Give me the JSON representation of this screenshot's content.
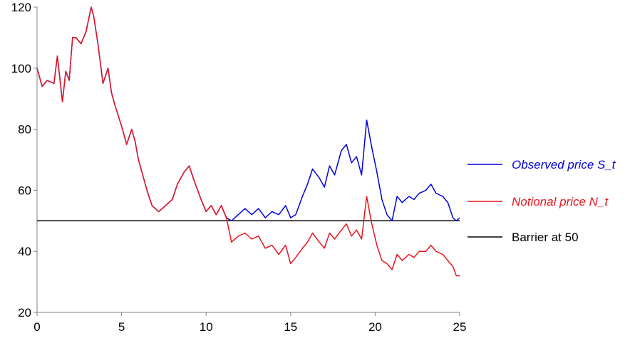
{
  "chart_data": {
    "type": "line",
    "xlim": [
      0,
      25
    ],
    "ylim": [
      20,
      120
    ],
    "x_ticks": [
      0,
      5,
      10,
      15,
      20,
      25
    ],
    "y_ticks": [
      20,
      40,
      60,
      80,
      100,
      120
    ],
    "grid": false,
    "legend_placement": "right",
    "barrier": {
      "name": "Barrier at 50",
      "value": 50,
      "color": "#000000"
    },
    "series": [
      {
        "name": "Observed price S_t",
        "color": "#0000dd",
        "x": [
          0,
          0.3,
          0.6,
          1.0,
          1.2,
          1.5,
          1.7,
          1.9,
          2.1,
          2.3,
          2.6,
          2.9,
          3.2,
          3.35,
          3.6,
          3.9,
          4.2,
          4.4,
          4.6,
          5.0,
          5.3,
          5.6,
          5.8,
          6.0,
          6.2,
          6.5,
          6.8,
          7.2,
          7.6,
          8.0,
          8.3,
          8.7,
          9.0,
          9.3,
          9.7,
          10.0,
          10.3,
          10.6,
          10.9,
          11.2,
          11.5,
          11.9,
          12.3,
          12.7,
          13.1,
          13.5,
          13.9,
          14.3,
          14.7,
          15.0,
          15.3,
          15.7,
          16.0,
          16.3,
          16.7,
          17.0,
          17.3,
          17.6,
          18.0,
          18.3,
          18.6,
          18.9,
          19.2,
          19.5,
          19.8,
          20.1,
          20.4,
          20.7,
          21.0,
          21.3,
          21.6,
          22.0,
          22.3,
          22.6,
          23.0,
          23.3,
          23.6,
          24.0,
          24.3,
          24.6,
          24.8,
          25.0
        ],
        "y": [
          100,
          94,
          96,
          95,
          104,
          89,
          99,
          96,
          110,
          110,
          108,
          112,
          120,
          117,
          108,
          95,
          100,
          92,
          88,
          81,
          75,
          80,
          76,
          70,
          66,
          60,
          55,
          53,
          55,
          57,
          62,
          66,
          68,
          63,
          57,
          53,
          55,
          52,
          55,
          51,
          50,
          52,
          54,
          52,
          54,
          51,
          53,
          52,
          55,
          51,
          52,
          58,
          62,
          67,
          64,
          61,
          68,
          65,
          73,
          75,
          69,
          71,
          65,
          83,
          74,
          66,
          57,
          52,
          50,
          58,
          56,
          58,
          57,
          59,
          60,
          62,
          59,
          58,
          56,
          51,
          50,
          51
        ]
      },
      {
        "name": "Notional price N_t",
        "color": "#e8141e",
        "x": [
          0,
          0.3,
          0.6,
          1.0,
          1.2,
          1.5,
          1.7,
          1.9,
          2.1,
          2.3,
          2.6,
          2.9,
          3.2,
          3.35,
          3.6,
          3.9,
          4.2,
          4.4,
          4.6,
          5.0,
          5.3,
          5.6,
          5.8,
          6.0,
          6.2,
          6.5,
          6.8,
          7.2,
          7.6,
          8.0,
          8.3,
          8.7,
          9.0,
          9.3,
          9.7,
          10.0,
          10.3,
          10.6,
          10.9,
          11.2,
          11.5,
          11.9,
          12.3,
          12.7,
          13.1,
          13.5,
          13.9,
          14.3,
          14.7,
          15.0,
          15.3,
          15.7,
          16.0,
          16.3,
          16.7,
          17.0,
          17.3,
          17.6,
          18.0,
          18.3,
          18.6,
          18.9,
          19.2,
          19.5,
          19.8,
          20.1,
          20.4,
          20.7,
          21.0,
          21.3,
          21.6,
          22.0,
          22.3,
          22.6,
          23.0,
          23.3,
          23.6,
          24.0,
          24.3,
          24.6,
          24.8,
          25.0
        ],
        "y": [
          100,
          94,
          96,
          95,
          104,
          89,
          99,
          96,
          110,
          110,
          108,
          112,
          120,
          117,
          108,
          95,
          100,
          92,
          88,
          81,
          75,
          80,
          76,
          70,
          66,
          60,
          55,
          53,
          55,
          57,
          62,
          66,
          68,
          63,
          57,
          53,
          55,
          52,
          55,
          51,
          43,
          45,
          46,
          44,
          45,
          41,
          42,
          39,
          42,
          36,
          38,
          41,
          43,
          46,
          43,
          41,
          46,
          44,
          47,
          49,
          45,
          47,
          44,
          58,
          49,
          42,
          37,
          36,
          34,
          39,
          37,
          39,
          38,
          40,
          40,
          42,
          40,
          39,
          37,
          35,
          32,
          32
        ]
      }
    ]
  }
}
